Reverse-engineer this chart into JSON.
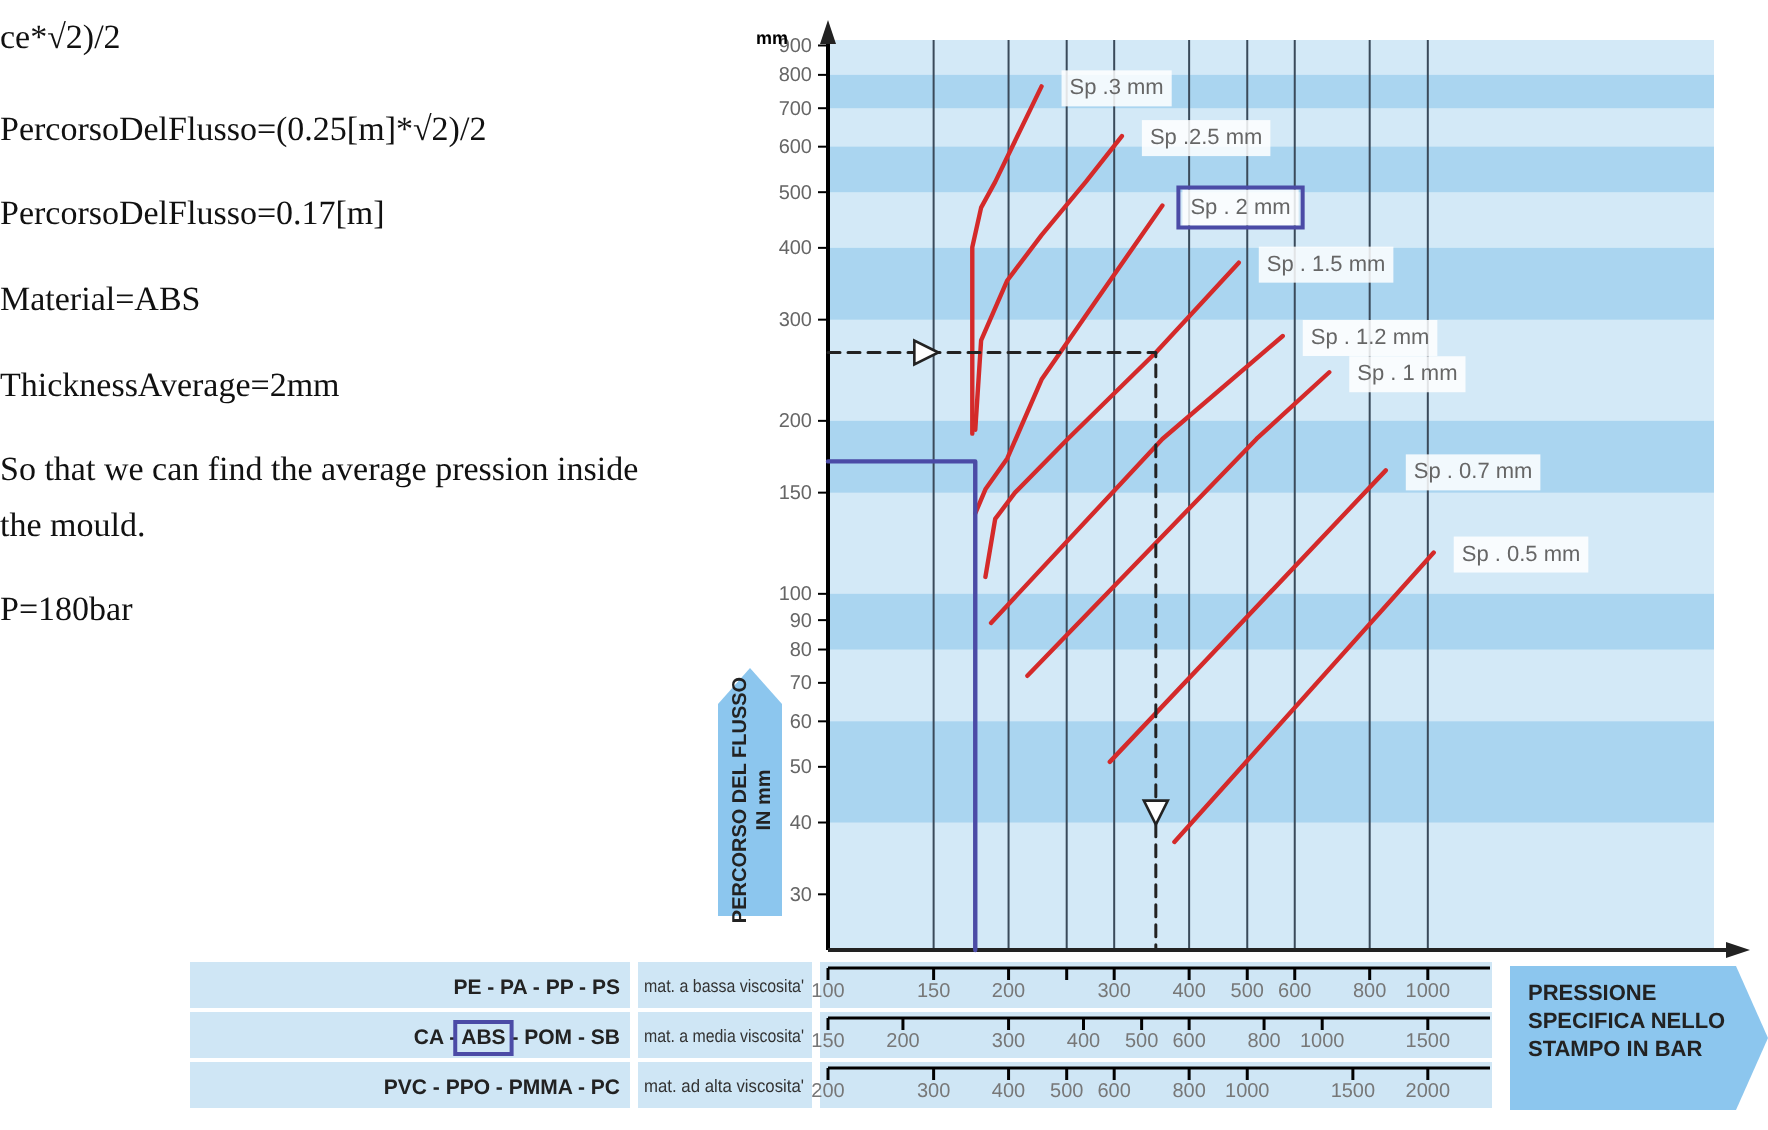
{
  "chart_data": [
    {
      "type": "line",
      "xlabel": "PRESSIONE SPECIFICA NELLO STAMPO IN BAR",
      "ylabel": "PERCORSO DEL FLUSSO IN mm",
      "log": "xy",
      "grid": "x",
      "xlim": [
        100,
        3000
      ],
      "ylim": [
        24,
        920
      ],
      "xticks": [
        100,
        150,
        200,
        {
          "value": 250,
          "label": null
        },
        300,
        400,
        500,
        600,
        800,
        1000
      ],
      "yticks": [
        30,
        40,
        50,
        60,
        70,
        80,
        90,
        100,
        150,
        200,
        300,
        400,
        500,
        600,
        700,
        800,
        900
      ],
      "bands": [
        {
          "axis": "y",
          "from": 40,
          "to": 60,
          "color": "#aad5f0"
        },
        {
          "axis": "y",
          "from": 80,
          "to": 100,
          "color": "#aad5f0"
        },
        {
          "axis": "y",
          "from": 150,
          "to": 200,
          "color": "#aad5f0"
        },
        {
          "axis": "y",
          "from": 300,
          "to": 400,
          "color": "#aad5f0"
        },
        {
          "axis": "y",
          "from": 500,
          "to": 600,
          "color": "#aad5f0"
        },
        {
          "axis": "y",
          "from": 700,
          "to": 800,
          "color": "#aad5f0"
        }
      ],
      "series": [
        {
          "name": "Sp .3 mm",
          "color": "#d42a2a",
          "x": [
            174,
            174,
            180,
            190,
            227
          ],
          "values": [
            190,
            401,
            470,
            521,
            764
          ]
        },
        {
          "name": "Sp .2.5 mm",
          "color": "#d42a2a",
          "x": [
            176,
            180,
            199,
            227,
            269,
            309
          ],
          "values": [
            193,
            276,
            351,
            421,
            521,
            626
          ]
        },
        {
          "name": "Sp . 2 mm",
          "color": "#d42a2a",
          "x": [
            176,
            183,
            199,
            227,
            280,
            361
          ],
          "values": [
            138,
            152,
            172,
            236,
            324,
            474
          ]
        },
        {
          "name": "Sp . 1.5 mm",
          "color": "#d42a2a",
          "x": [
            183,
            190,
            205,
            251,
            352,
            484
          ],
          "values": [
            107,
            135,
            150,
            186,
            263,
            377
          ]
        },
        {
          "name": "Sp . 1.2 mm",
          "color": "#d42a2a",
          "x": [
            187,
            361,
            573
          ],
          "values": [
            89,
            186,
            281
          ]
        },
        {
          "name": "Sp . 1 mm",
          "color": "#d42a2a",
          "x": [
            215,
            518,
            685
          ],
          "values": [
            72,
            186,
            243
          ]
        },
        {
          "name": "Sp . 0.7 mm",
          "color": "#d42a2a",
          "x": [
            295,
            851
          ],
          "values": [
            51,
            164
          ]
        },
        {
          "name": "Sp . 0.5 mm",
          "color": "#d42a2a",
          "x": [
            378,
            1023
          ],
          "values": [
            37,
            118
          ]
        },
        {
          "color": "#222222",
          "line_style": "dashed",
          "x": [
            100,
            352,
            352
          ],
          "values": [
            263,
            263,
            24
          ]
        },
        {
          "color": "#4b4ba6",
          "x": [
            100,
            176,
            176
          ],
          "values": [
            170,
            170,
            24
          ]
        }
      ],
      "annotations": [
        "ce*√2)/2",
        "PercorsoDelFlusso=(0.25[m]*√2)/2",
        "PercorsoDelFlusso=0.17[m]",
        "Material=ABS",
        "ThicknessAverage=2mm",
        "So that we can find the average pression inside the mould.",
        "P=180bar",
        "mm",
        "PE - PA - PP - PS",
        "mat. a bassa viscosita'"
      ]
    },
    {
      "type": "other",
      "annotations": [
        "CA - ABS - POM - SB",
        "mat. a media viscosita'",
        "150",
        "200",
        "300",
        "400",
        "500",
        "600",
        "800",
        "1000",
        "1500"
      ]
    },
    {
      "type": "other",
      "annotations": [
        "PVC - PPO - PMMA - PC",
        "mat. ad alta viscosita'",
        "200",
        "300",
        "400",
        "500",
        "600",
        "800",
        "1000",
        "1500",
        "2000"
      ]
    }
  ]
}
